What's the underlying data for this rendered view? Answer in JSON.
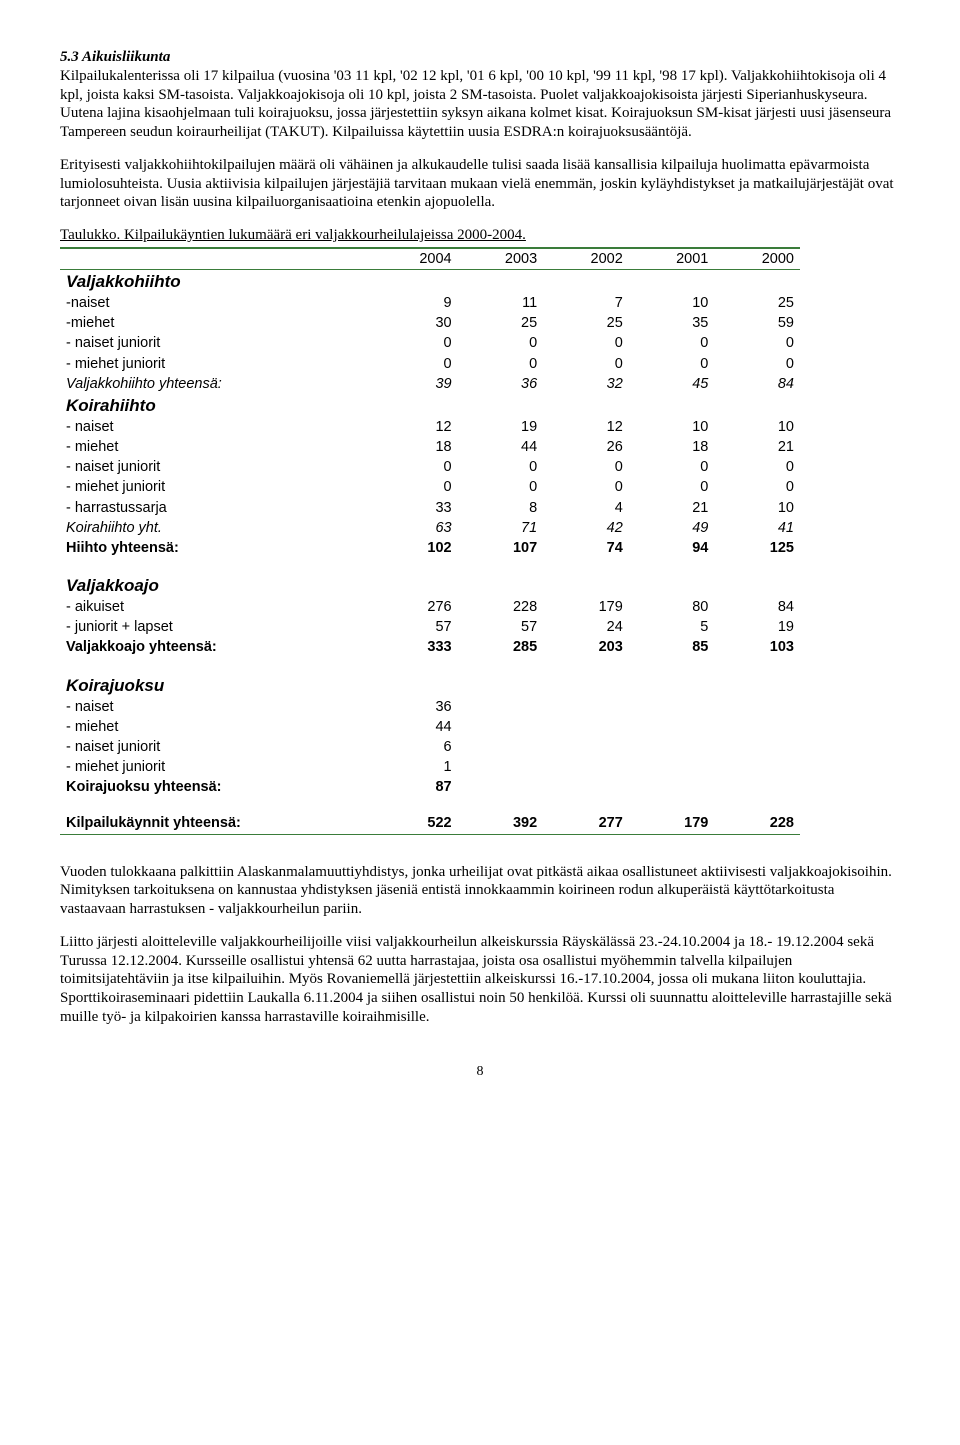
{
  "heading": "5.3 Aikuisliikunta",
  "para1": "Kilpailukalenterissa oli 17 kilpailua (vuosina '03 11 kpl, '02 12 kpl, '01 6 kpl, '00 10 kpl, '99 11 kpl, '98 17 kpl). Valjakkohiihtokisoja oli 4 kpl, joista kaksi SM-tasoista. Valjakkoajokisoja oli 10 kpl, joista 2 SM-tasoista. Puolet valjakkoajokisoista järjesti Siperianhuskyseura. Uutena lajina kisaohjelmaan tuli koirajuoksu, jossa järjestettiin syksyn aikana kolmet kisat. Koirajuoksun SM-kisat järjesti uusi jäsenseura Tampereen seudun koiraurheilijat (TAKUT). Kilpailuissa käytettiin uusia ESDRA:n koirajuoksusääntöjä.",
  "para2": "Erityisesti valjakkohiihtokilpailujen määrä oli vähäinen ja alkukaudelle tulisi saada lisää kansallisia kilpailuja huolimatta epävarmoista lumiolosuhteista. Uusia aktiivisia kilpailujen järjestäjiä tarvitaan mukaan vielä enemmän, joskin kyläyhdistykset ja matkailujärjestäjät ovat tarjonneet oivan lisän uusina kilpailuorganisaatioina etenkin ajopuolella.",
  "table_caption": "Taulukko. Kilpailukäyntien lukumäärä eri valjakkourheilulajeissa 2000-2004.",
  "years": [
    "2004",
    "2003",
    "2002",
    "2001",
    "2000"
  ],
  "groups": [
    {
      "title": "Valjakkohiihto",
      "rows": [
        {
          "label": "-naiset",
          "vals": [
            "9",
            "11",
            "7",
            "10",
            "25"
          ]
        },
        {
          "label": "-miehet",
          "vals": [
            "30",
            "25",
            "25",
            "35",
            "59"
          ]
        },
        {
          "label": "- naiset juniorit",
          "vals": [
            "0",
            "0",
            "0",
            "0",
            "0"
          ]
        },
        {
          "label": "- miehet juniorit",
          "vals": [
            "0",
            "0",
            "0",
            "0",
            "0"
          ]
        },
        {
          "label": "Valjakkohiihto yhteensä:",
          "vals": [
            "39",
            "36",
            "32",
            "45",
            "84"
          ],
          "italic": true
        }
      ]
    },
    {
      "title": "Koirahiihto",
      "no_spacer": true,
      "rows": [
        {
          "label": "- naiset",
          "vals": [
            "12",
            "19",
            "12",
            "10",
            "10"
          ]
        },
        {
          "label": "- miehet",
          "vals": [
            "18",
            "44",
            "26",
            "18",
            "21"
          ]
        },
        {
          "label": "- naiset juniorit",
          "vals": [
            "0",
            "0",
            "0",
            "0",
            "0"
          ]
        },
        {
          "label": "- miehet juniorit",
          "vals": [
            "0",
            "0",
            "0",
            "0",
            "0"
          ]
        },
        {
          "label": "- harrastussarja",
          "vals": [
            "33",
            "8",
            "4",
            "21",
            "10"
          ]
        },
        {
          "label": "Koirahiihto yht.",
          "vals": [
            "63",
            "71",
            "42",
            "49",
            "41"
          ],
          "italic": true
        },
        {
          "label": "Hiihto yhteensä:",
          "vals": [
            "102",
            "107",
            "74",
            "94",
            "125"
          ],
          "bold": true
        }
      ]
    },
    {
      "title": "Valjakkoajo",
      "rows": [
        {
          "label": "- aikuiset",
          "vals": [
            "276",
            "228",
            "179",
            "80",
            "84"
          ]
        },
        {
          "label": "- juniorit + lapset",
          "vals": [
            "57",
            "57",
            "24",
            "5",
            "19"
          ]
        },
        {
          "label": "Valjakkoajo yhteensä:",
          "vals": [
            "333",
            "285",
            "203",
            "85",
            "103"
          ],
          "bold": true
        }
      ]
    },
    {
      "title": "Koirajuoksu",
      "rows": [
        {
          "label": "- naiset",
          "vals": [
            "36",
            "",
            "",
            "",
            ""
          ]
        },
        {
          "label": "- miehet",
          "vals": [
            "44",
            "",
            "",
            "",
            ""
          ]
        },
        {
          "label": "- naiset juniorit",
          "vals": [
            "6",
            "",
            "",
            "",
            ""
          ]
        },
        {
          "label": "- miehet juniorit",
          "vals": [
            "1",
            "",
            "",
            "",
            ""
          ]
        },
        {
          "label": "Koirajuoksu yhteensä:",
          "vals": [
            "87",
            "",
            "",
            "",
            ""
          ],
          "bold": true
        }
      ]
    }
  ],
  "total_row": {
    "label": "Kilpailukäynnit yhteensä:",
    "vals": [
      "522",
      "392",
      "277",
      "179",
      "228"
    ]
  },
  "para3": "Vuoden tulokkaana palkittiin Alaskanmalamuuttiyhdistys, jonka urheilijat ovat pitkästä aikaa osallistuneet aktiivisesti valjakkoajokisoihin. Nimityksen tarkoituksena on kannustaa yhdistyksen jäseniä entistä innokkaammin koirineen rodun alkuperäistä käyttötarkoitusta vastaavaan harrastuksen - valjakkourheilun pariin.",
  "para4": "Liitto järjesti aloitteleville valjakkourheilijoille viisi valjakkourheilun alkeiskurssia Räyskälässä 23.-24.10.2004 ja 18.- 19.12.2004 sekä Turussa 12.12.2004. Kursseille osallistui yhtensä 62 uutta harrastajaa, joista osa osallistui myöhemmin talvella kilpailujen toimitsijatehtäviin ja itse kilpailuihin. Myös Rovaniemellä järjestettiin alkeiskurssi 16.-17.10.2004, jossa oli mukana liiton kouluttajia. Sporttikoiraseminaari pidettiin Laukalla 6.11.2004 ja siihen osallistui noin 50 henkilöä. Kurssi oli suunnattu aloitteleville harrastajille sekä muille työ- ja kilpakoirien kanssa harrastaville koiraihmisille.",
  "page_number": "8",
  "colors": {
    "table_border": "#3a7c3a",
    "text": "#000000",
    "background": "#ffffff"
  }
}
